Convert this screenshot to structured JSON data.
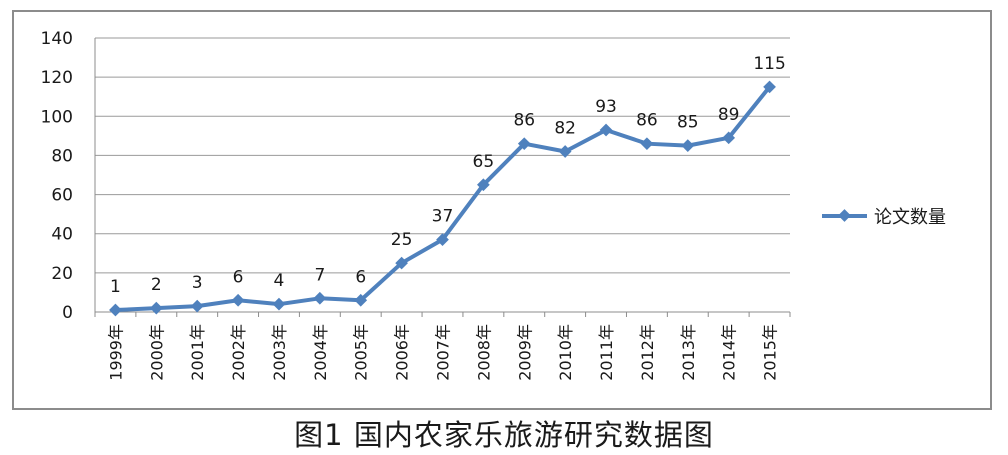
{
  "caption": "图1 国内农家乐旅游研究数据图",
  "chart_data": {
    "type": "line",
    "categories": [
      "1999年",
      "2000年",
      "2001年",
      "2002年",
      "2003年",
      "2004年",
      "2005年",
      "2006年",
      "2007年",
      "2008年",
      "2009年",
      "2010年",
      "2011年",
      "2012年",
      "2013年",
      "2014年",
      "2015年"
    ],
    "series": [
      {
        "name": "论文数量",
        "values": [
          1,
          2,
          3,
          6,
          4,
          7,
          6,
          25,
          37,
          65,
          86,
          82,
          93,
          86,
          85,
          89,
          115
        ],
        "color": "#4f81bd",
        "marker": "diamond"
      }
    ],
    "ylim": [
      0,
      140
    ],
    "yticks": [
      0,
      20,
      40,
      60,
      80,
      100,
      120,
      140
    ],
    "grid": true,
    "data_labels": true,
    "legend_position": "right"
  }
}
